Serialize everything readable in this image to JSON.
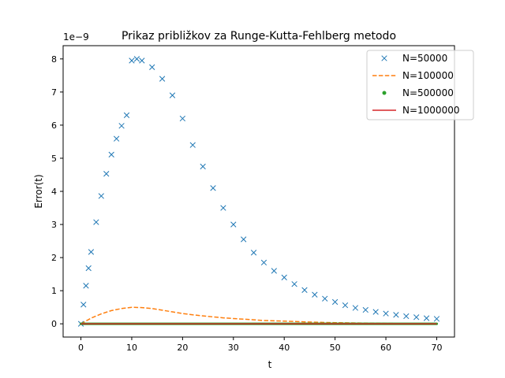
{
  "chart_data": {
    "type": "line",
    "title": "Prikaz približkov za Runge-Kutta-Fehlberg metodo",
    "xlabel": "t",
    "ylabel": "Error(t)",
    "y_scale_label": "1e−9",
    "y_multiplier": 1e-09,
    "xlim": [
      -3.5,
      73.5
    ],
    "ylim": [
      -0.4,
      8.4
    ],
    "x_ticks": [
      0,
      10,
      20,
      30,
      40,
      50,
      60,
      70
    ],
    "x_tick_labels": [
      "0",
      "10",
      "20",
      "30",
      "40",
      "50",
      "60",
      "70"
    ],
    "y_ticks": [
      0,
      1,
      2,
      3,
      4,
      5,
      6,
      7,
      8
    ],
    "y_tick_labels": [
      "0",
      "1",
      "2",
      "3",
      "4",
      "5",
      "6",
      "7",
      "8"
    ],
    "grid": false,
    "legend_position": "top-right",
    "series": [
      {
        "name": "N=50000",
        "style": "x-marker",
        "color": "#1f77b4",
        "x": [
          0,
          0.5,
          1,
          1.5,
          2,
          3,
          4,
          5,
          6,
          7,
          8,
          9,
          10,
          11,
          12,
          14,
          16,
          18,
          20,
          22,
          24,
          26,
          28,
          30,
          32,
          34,
          36,
          38,
          40,
          42,
          44,
          46,
          48,
          50,
          52,
          54,
          56,
          58,
          60,
          62,
          64,
          66,
          68,
          70
        ],
        "values": [
          0,
          0.58,
          1.15,
          1.68,
          2.17,
          3.07,
          3.86,
          4.53,
          5.11,
          5.59,
          5.98,
          6.3,
          7.95,
          8.0,
          7.95,
          7.75,
          7.4,
          6.9,
          6.2,
          5.4,
          4.75,
          4.1,
          3.5,
          3.0,
          2.55,
          2.15,
          1.85,
          1.6,
          1.4,
          1.2,
          1.02,
          0.88,
          0.76,
          0.66,
          0.56,
          0.48,
          0.42,
          0.36,
          0.31,
          0.27,
          0.23,
          0.2,
          0.17,
          0.15
        ]
      },
      {
        "name": "N=100000",
        "style": "dashed",
        "color": "#ff7f0e",
        "x": [
          0,
          2,
          4,
          6,
          8,
          10,
          12,
          14,
          16,
          18,
          20,
          22,
          24,
          26,
          28,
          30,
          32,
          34,
          36,
          38,
          40,
          42,
          44,
          46,
          48,
          50,
          52,
          54,
          56,
          58,
          60,
          62,
          64,
          66,
          68,
          70
        ],
        "values": [
          0,
          0.17,
          0.3,
          0.4,
          0.46,
          0.5,
          0.49,
          0.46,
          0.41,
          0.36,
          0.31,
          0.27,
          0.24,
          0.21,
          0.18,
          0.16,
          0.14,
          0.12,
          0.1,
          0.09,
          0.08,
          0.07,
          0.06,
          0.05,
          0.04,
          0.035,
          0.03,
          0.025,
          0.02,
          0.018,
          0.015,
          0.012,
          0.01,
          0.008,
          0.007,
          0.005
        ]
      },
      {
        "name": "N=500000",
        "style": "dot-marker",
        "color": "#2ca02c",
        "x": [
          0,
          70
        ],
        "values": [
          0,
          0
        ]
      },
      {
        "name": "N=1000000",
        "style": "solid",
        "color": "#d62728",
        "x": [
          0,
          70
        ],
        "values": [
          0,
          0
        ]
      }
    ]
  }
}
